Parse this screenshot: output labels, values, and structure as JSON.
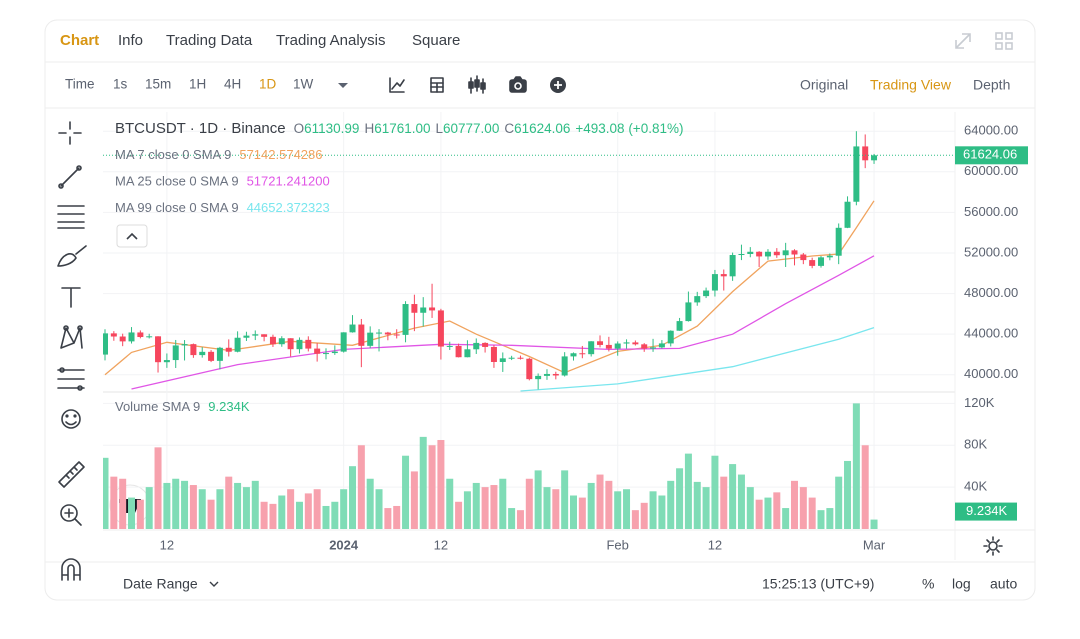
{
  "tabs": [
    "Chart",
    "Info",
    "Trading Data",
    "Trading Analysis",
    "Square"
  ],
  "active_tab": 0,
  "intervals": [
    "Time",
    "1s",
    "15m",
    "1H",
    "4H",
    "1D",
    "1W"
  ],
  "active_interval": 5,
  "views": [
    "Original",
    "Trading View",
    "Depth"
  ],
  "active_view": 1,
  "chart_data": {
    "type": "candlestick",
    "symbol": "BTCUSDT · 1D · Binance",
    "ohlc": [
      {
        "key": "O",
        "text": "61130.99"
      },
      {
        "key": "H",
        "text": "61761.00"
      },
      {
        "key": "L",
        "text": "60777.00"
      },
      {
        "key": "C",
        "text": "61624.06"
      }
    ],
    "change": "+493.08 (+0.81%)",
    "price_label": "61624.06",
    "up_color": "#2ebd85",
    "down_color": "#f6465d",
    "volume_up_color": "#7fdcb6",
    "volume_down_color": "#f7a1ad",
    "volume_name": "Volume SMA 9",
    "volume_legend": "9.234K",
    "grid": true,
    "x": [
      "2023-12-05",
      "2023-12-06",
      "2023-12-07",
      "2023-12-08",
      "2023-12-09",
      "2023-12-10",
      "2023-12-11",
      "2023-12-12",
      "2023-12-13",
      "2023-12-14",
      "2023-12-15",
      "2023-12-16",
      "2023-12-17",
      "2023-12-18",
      "2023-12-19",
      "2023-12-20",
      "2023-12-21",
      "2023-12-22",
      "2023-12-23",
      "2023-12-24",
      "2023-12-25",
      "2023-12-26",
      "2023-12-27",
      "2023-12-28",
      "2023-12-29",
      "2023-12-30",
      "2023-12-31",
      "2024-01-01",
      "2024-01-02",
      "2024-01-03",
      "2024-01-04",
      "2024-01-05",
      "2024-01-06",
      "2024-01-07",
      "2024-01-08",
      "2024-01-09",
      "2024-01-10",
      "2024-01-11",
      "2024-01-12",
      "2024-01-13",
      "2024-01-14",
      "2024-01-15",
      "2024-01-16",
      "2024-01-17",
      "2024-01-18",
      "2024-01-19",
      "2024-01-20",
      "2024-01-21",
      "2024-01-22",
      "2024-01-23",
      "2024-01-24",
      "2024-01-25",
      "2024-01-26",
      "2024-01-27",
      "2024-01-28",
      "2024-01-29",
      "2024-01-30",
      "2024-01-31",
      "2024-02-01",
      "2024-02-02",
      "2024-02-03",
      "2024-02-04",
      "2024-02-05",
      "2024-02-06",
      "2024-02-07",
      "2024-02-08",
      "2024-02-09",
      "2024-02-10",
      "2024-02-11",
      "2024-02-12",
      "2024-02-13",
      "2024-02-14",
      "2024-02-15",
      "2024-02-16",
      "2024-02-17",
      "2024-02-18",
      "2024-02-19",
      "2024-02-20",
      "2024-02-21",
      "2024-02-22",
      "2024-02-23",
      "2024-02-24",
      "2024-02-25",
      "2024-02-26",
      "2024-02-27",
      "2024-02-28",
      "2024-02-29",
      "2024-03-01"
    ],
    "open": [
      41990,
      44080,
      43770,
      43290,
      44170,
      43720,
      43790,
      41240,
      41450,
      42890,
      43020,
      41940,
      42260,
      41370,
      42660,
      42270,
      43650,
      43860,
      43990,
      43740,
      43010,
      43600,
      42520,
      43440,
      42580,
      42070,
      42140,
      42280,
      44180,
      44950,
      42850,
      44150,
      44160,
      43970,
      43930,
      46970,
      46110,
      46630,
      46340,
      42780,
      42840,
      41730,
      42510,
      43140,
      42740,
      41260,
      41620,
      41680,
      41580,
      39570,
      39890,
      40080,
      39930,
      41810,
      42120,
      42030,
      43300,
      42940,
      42580,
      43080,
      43190,
      43000,
      42580,
      42700,
      43090,
      44340,
      45290,
      47130,
      47750,
      48300,
      49920,
      49700,
      51800,
      51900,
      52120,
      51660,
      52120,
      51780,
      52260,
      51850,
      51300,
      50730,
      51570,
      51730,
      54480,
      57050,
      62500,
      61130.99
    ],
    "high": [
      44490,
      44300,
      44050,
      44700,
      44370,
      44040,
      43800,
      42100,
      43430,
      43420,
      43080,
      42720,
      42430,
      42750,
      43490,
      44280,
      44240,
      44370,
      43990,
      43950,
      43800,
      43600,
      43680,
      43790,
      43120,
      42610,
      42900,
      44190,
      45880,
      45500,
      44770,
      44500,
      44230,
      44490,
      47250,
      47890,
      47650,
      48970,
      46500,
      43260,
      43070,
      43400,
      43580,
      43200,
      42930,
      42200,
      41870,
      41890,
      41680,
      40130,
      40550,
      40300,
      42230,
      42200,
      42840,
      43310,
      43880,
      43740,
      43290,
      43490,
      43380,
      43120,
      43540,
      43420,
      44380,
      45600,
      48200,
      48170,
      48590,
      50330,
      50370,
      52040,
      52820,
      52580,
      52180,
      52380,
      52480,
      53000,
      52370,
      52000,
      51540,
      51700,
      51950,
      54910,
      57580,
      64000,
      63680,
      61761
    ],
    "low": [
      41420,
      43350,
      42820,
      43080,
      43590,
      43580,
      40220,
      40680,
      40670,
      41410,
      41670,
      41690,
      41250,
      40530,
      41800,
      42210,
      43330,
      43420,
      43300,
      42740,
      42760,
      41800,
      42100,
      42300,
      41300,
      41520,
      41960,
      42190,
      44150,
      40750,
      42620,
      42300,
      43400,
      43580,
      43200,
      44300,
      44750,
      45600,
      41500,
      42440,
      41710,
      41720,
      42050,
      42190,
      40680,
      40280,
      41450,
      41500,
      39450,
      38560,
      39500,
      39550,
      39830,
      41400,
      41630,
      41800,
      42700,
      42300,
      41880,
      42580,
      42880,
      42260,
      42260,
      42580,
      42790,
      44330,
      45240,
      46800,
      47560,
      47710,
      48300,
      49250,
      51300,
      51580,
      50620,
      51330,
      51520,
      50620,
      50780,
      50900,
      50500,
      50560,
      51280,
      50900,
      54450,
      56700,
      60360,
      60777
    ],
    "close": [
      44080,
      43770,
      43290,
      44170,
      43720,
      43790,
      41240,
      41450,
      42890,
      43020,
      41940,
      42260,
      41370,
      42660,
      42270,
      43650,
      43860,
      43990,
      43740,
      43010,
      43600,
      42520,
      43440,
      42580,
      42070,
      42140,
      42280,
      44180,
      44950,
      42850,
      44150,
      44160,
      43970,
      43930,
      46970,
      46110,
      46630,
      46340,
      42780,
      42840,
      41730,
      42510,
      43140,
      42740,
      41260,
      41620,
      41680,
      41580,
      39570,
      39890,
      40080,
      39930,
      41810,
      42120,
      42030,
      43300,
      42940,
      42580,
      43080,
      43190,
      43000,
      42580,
      42700,
      43090,
      44340,
      45290,
      47130,
      47750,
      48300,
      49920,
      49700,
      51800,
      51900,
      52120,
      51660,
      52120,
      51780,
      52260,
      51850,
      51300,
      50730,
      51570,
      51730,
      54480,
      57050,
      62500,
      61130.99,
      61624.06
    ],
    "volume": [
      68000,
      50000,
      48000,
      30000,
      28000,
      40000,
      78000,
      44000,
      48000,
      46000,
      42000,
      38000,
      28000,
      38000,
      50000,
      44000,
      40000,
      46000,
      26000,
      24000,
      32000,
      38000,
      26000,
      34000,
      38000,
      22000,
      26000,
      38000,
      60000,
      80000,
      48000,
      38000,
      20000,
      22000,
      70000,
      55000,
      88000,
      80000,
      85000,
      48000,
      26000,
      36000,
      44000,
      40000,
      42000,
      48000,
      20000,
      18000,
      48000,
      56000,
      40000,
      38000,
      56000,
      32000,
      30000,
      44000,
      52000,
      46000,
      36000,
      38000,
      18000,
      25000,
      36000,
      32000,
      46000,
      58000,
      72000,
      45000,
      40000,
      70000,
      50000,
      62000,
      52000,
      40000,
      28000,
      30000,
      35000,
      20000,
      46000,
      40000,
      30000,
      18000,
      20000,
      50000,
      65000,
      120000,
      80000,
      9000
    ],
    "xlim": [
      "2023-12-05",
      "2024-03-10"
    ],
    "xticks": [
      {
        "value": "2023-12-12",
        "label": "12"
      },
      {
        "value": "2024-01-01",
        "label": "2024"
      },
      {
        "value": "2024-01-12",
        "label": "12"
      },
      {
        "value": "2024-02-01",
        "label": "Feb"
      },
      {
        "value": "2024-02-12",
        "label": "12"
      },
      {
        "value": "2024-03-01",
        "label": "Mar"
      }
    ],
    "ylim": [
      38500,
      65300
    ],
    "yticks": [
      {
        "value": 40000,
        "label": "40000.00"
      },
      {
        "value": 44000,
        "label": "44000.00"
      },
      {
        "value": 48000,
        "label": "48000.00"
      },
      {
        "value": 52000,
        "label": "52000.00"
      },
      {
        "value": 56000,
        "label": "56000.00"
      },
      {
        "value": 60000,
        "label": "60000.00"
      },
      {
        "value": 64000,
        "label": "64000.00"
      }
    ],
    "volume_ylim": [
      0,
      128000
    ],
    "volume_yticks": [
      {
        "value": 40000,
        "label": "40K"
      },
      {
        "value": 80000,
        "label": "80K"
      },
      {
        "value": 120000,
        "label": "120K"
      }
    ],
    "series": [
      {
        "name": "MA 7 close 0 SMA 9",
        "legend_value": "57142.574286",
        "color": "#f0a35e",
        "x": [
          "2023-12-05",
          "2023-12-08",
          "2023-12-12",
          "2023-12-19",
          "2023-12-26",
          "2024-01-02",
          "2024-01-09",
          "2024-01-13",
          "2024-01-16",
          "2024-01-22",
          "2024-01-26",
          "2024-02-01",
          "2024-02-06",
          "2024-02-10",
          "2024-02-14",
          "2024-02-18",
          "2024-02-23",
          "2024-02-26",
          "2024-02-28",
          "2024-03-01"
        ],
        "values": [
          40000,
          42200,
          43200,
          42400,
          43300,
          42900,
          44600,
          45300,
          44000,
          41800,
          40200,
          42300,
          42900,
          44800,
          48200,
          51200,
          51700,
          51900,
          54500,
          57142.574286
        ]
      },
      {
        "name": "MA 25 close 0 SMA 9",
        "legend_value": "51721.241200",
        "color": "#e056e6",
        "x": [
          "2023-12-08",
          "2023-12-20",
          "2024-01-01",
          "2024-01-12",
          "2024-01-20",
          "2024-01-31",
          "2024-02-08",
          "2024-02-14",
          "2024-02-20",
          "2024-02-26",
          "2024-03-01"
        ],
        "values": [
          38600,
          41000,
          42500,
          43000,
          42900,
          42500,
          42600,
          44000,
          47000,
          49800,
          51721.2412
        ]
      },
      {
        "name": "MA 99 close 0 SMA 9",
        "legend_value": "44652.372323",
        "color": "#7ae6ee",
        "x": [
          "2024-01-21",
          "2024-02-01",
          "2024-02-14",
          "2024-02-26",
          "2024-03-01"
        ],
        "values": [
          38400,
          39100,
          40800,
          43500,
          44652.372323
        ]
      }
    ]
  },
  "footer": {
    "date_range": "Date Range",
    "time": "15:25:13 (UTC+9)",
    "options": [
      "%",
      "log",
      "auto"
    ]
  }
}
